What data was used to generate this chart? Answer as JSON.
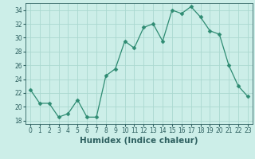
{
  "x": [
    0,
    1,
    2,
    3,
    4,
    5,
    6,
    7,
    8,
    9,
    10,
    11,
    12,
    13,
    14,
    15,
    16,
    17,
    18,
    19,
    20,
    21,
    22,
    23
  ],
  "y": [
    22.5,
    20.5,
    20.5,
    18.5,
    19.0,
    21.0,
    18.5,
    18.5,
    24.5,
    25.5,
    29.5,
    28.5,
    31.5,
    32.0,
    29.5,
    34.0,
    33.5,
    34.5,
    33.0,
    31.0,
    30.5,
    26.0,
    23.0,
    21.5
  ],
  "line_color": "#2e8b72",
  "marker": "D",
  "marker_size": 2.5,
  "bg_color": "#cceee8",
  "grid_color": "#aad8d0",
  "xlabel": "Humidex (Indice chaleur)",
  "xlabel_color": "#2e6060",
  "xlim": [
    -0.5,
    23.5
  ],
  "ylim": [
    17.5,
    35.0
  ],
  "yticks": [
    18,
    20,
    22,
    24,
    26,
    28,
    30,
    32,
    34
  ],
  "xticks": [
    0,
    1,
    2,
    3,
    4,
    5,
    6,
    7,
    8,
    9,
    10,
    11,
    12,
    13,
    14,
    15,
    16,
    17,
    18,
    19,
    20,
    21,
    22,
    23
  ],
  "tick_color": "#2e6060",
  "tick_label_size": 5.5,
  "xlabel_size": 7.5
}
